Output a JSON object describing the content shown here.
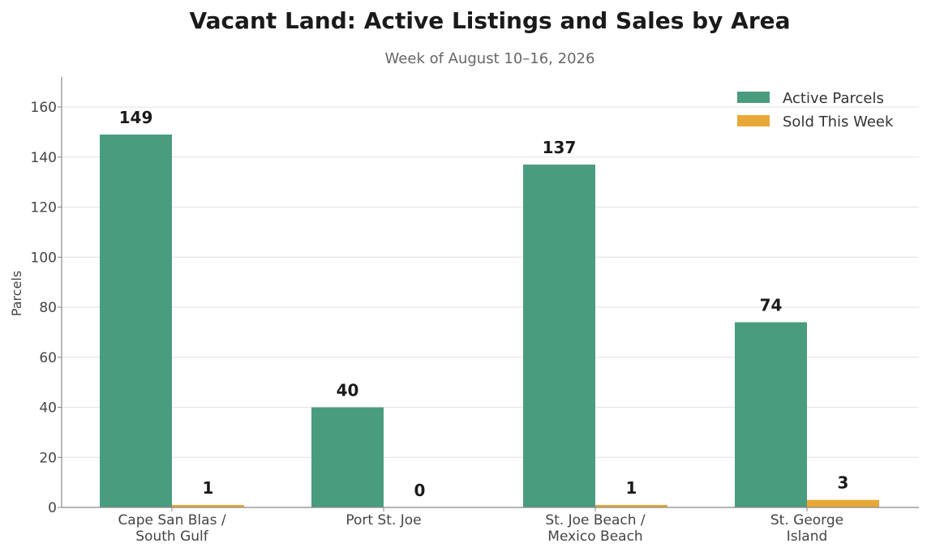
{
  "chart_data": {
    "type": "bar",
    "title": "Vacant Land: Active Listings and Sales by Area",
    "subtitle": "Week of August 10–16, 2026",
    "xlabel": "",
    "ylabel": "Parcels",
    "ylim": [
      0,
      172
    ],
    "yticks": [
      0,
      20,
      40,
      60,
      80,
      100,
      120,
      140,
      160
    ],
    "grid": "horizontal",
    "legend_position": "top-right",
    "categories": [
      [
        "Cape San Blas /",
        "South Gulf"
      ],
      [
        "Port St. Joe"
      ],
      [
        "St. Joe Beach /",
        "Mexico Beach"
      ],
      [
        "St. George",
        "Island"
      ]
    ],
    "series": [
      {
        "name": "Active Parcels",
        "color": "#4a9c7e",
        "values": [
          149,
          40,
          137,
          74
        ]
      },
      {
        "name": "Sold This Week",
        "color": "#e8a838",
        "values": [
          1,
          0,
          1,
          3
        ]
      }
    ]
  }
}
